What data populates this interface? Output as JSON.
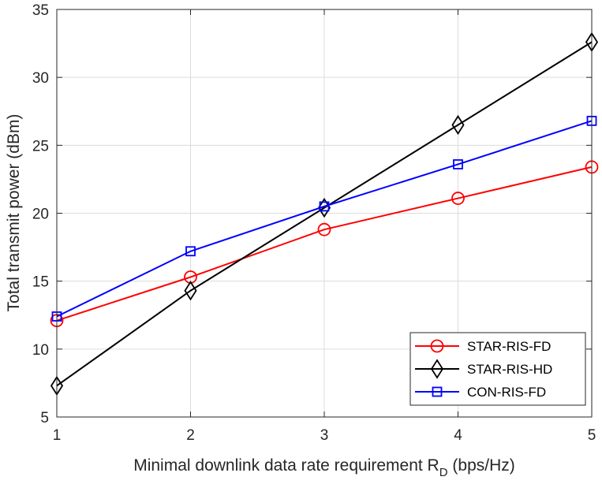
{
  "chart_data": {
    "type": "line",
    "x": [
      1,
      2,
      3,
      4,
      5
    ],
    "xlim": [
      1,
      5
    ],
    "ylim": [
      5,
      35
    ],
    "xticks": [
      "1",
      "2",
      "3",
      "4",
      "5"
    ],
    "yticks": [
      "5",
      "10",
      "15",
      "20",
      "25",
      "30",
      "35"
    ],
    "xlabel": "Minimal downlink data rate requirement R",
    "xlabel_subscript": "D",
    "xlabel_suffix": " (bps/Hz)",
    "ylabel": "Total transmit power (dBm)",
    "grid": true,
    "legend_position": "bottom-right",
    "series": [
      {
        "name": "STAR-RIS-FD",
        "color": "#ff0000",
        "marker": "circle",
        "values": [
          12.1,
          15.3,
          18.8,
          21.1,
          23.4
        ]
      },
      {
        "name": "STAR-RIS-HD",
        "color": "#000000",
        "marker": "diamond",
        "values": [
          7.3,
          14.3,
          20.4,
          26.5,
          32.6
        ]
      },
      {
        "name": "CON-RIS-FD",
        "color": "#0000ff",
        "marker": "square",
        "values": [
          12.4,
          17.2,
          20.5,
          23.6,
          26.8
        ]
      }
    ]
  }
}
